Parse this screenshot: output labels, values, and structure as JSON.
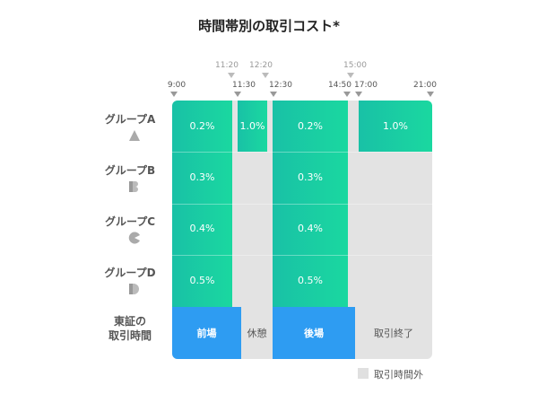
{
  "title": "時間帯別の取引コスト*",
  "time_ticks_top": [
    "11:20",
    "12:20",
    "15:00"
  ],
  "time_ticks_main": [
    "9:00",
    "11:30",
    "12:30",
    "14:50",
    "17:00",
    "21:00"
  ],
  "groups": [
    {
      "label": "グループA",
      "shape_icon": "triangle-icon",
      "values": [
        "0.2%",
        "1.0%",
        "0.2%",
        "1.0%"
      ]
    },
    {
      "label": "グループB",
      "shape_icon": "b-shape-icon",
      "values": [
        "0.3%",
        "0.3%"
      ]
    },
    {
      "label": "グループC",
      "shape_icon": "c-shape-icon",
      "values": [
        "0.4%",
        "0.4%"
      ]
    },
    {
      "label": "グループD",
      "shape_icon": "d-shape-icon",
      "values": [
        "0.5%",
        "0.5%"
      ]
    }
  ],
  "tse_row": {
    "label_line1": "東証の",
    "label_line2": "取引時間",
    "sessions": [
      "前場",
      "休憩",
      "後場",
      "取引終了"
    ]
  },
  "legend": {
    "label": "取引時間外"
  },
  "colors": {
    "green": "#1ad8a0",
    "blue": "#2e9cf2",
    "gray": "#e3e3e3"
  }
}
